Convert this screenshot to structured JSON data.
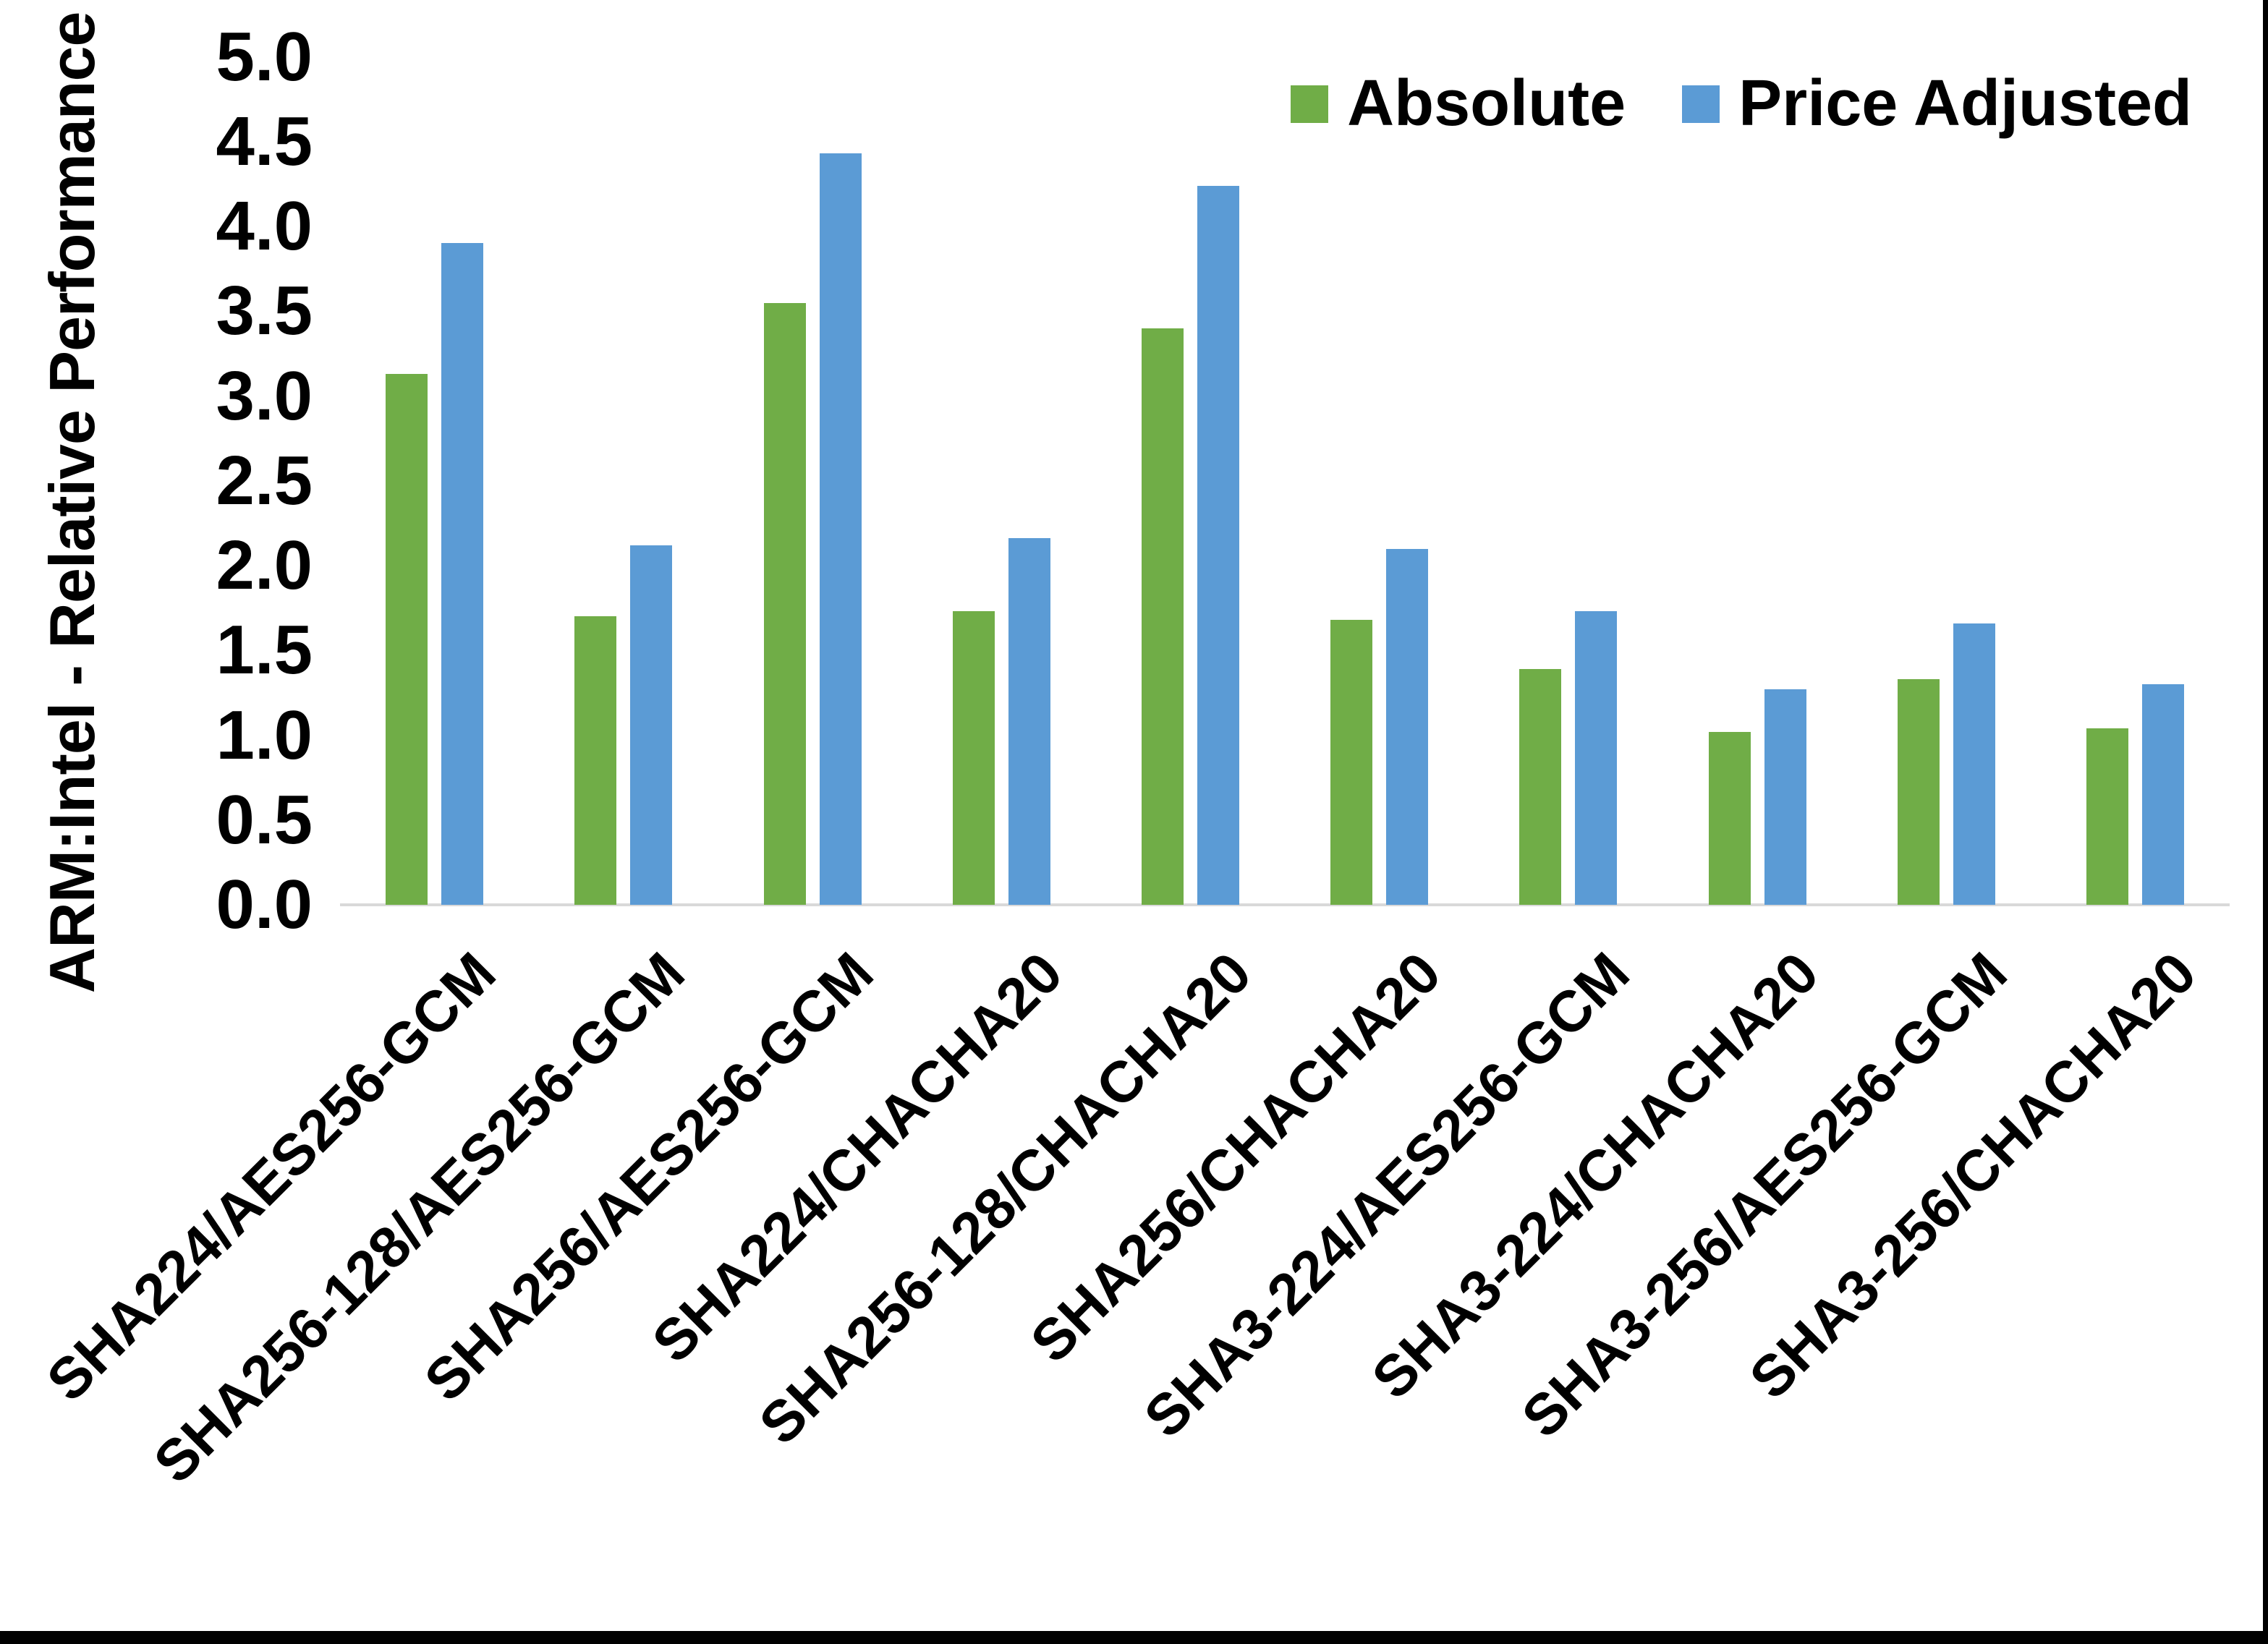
{
  "chart_data": {
    "type": "bar",
    "title": "",
    "ylabel": "ARM:Intel - Relative Performance",
    "xlabel": "",
    "ylim": [
      0.0,
      5.0
    ],
    "ytick_step": 0.5,
    "yticks": [
      "0.0",
      "0.5",
      "1.0",
      "1.5",
      "2.0",
      "2.5",
      "3.0",
      "3.5",
      "4.0",
      "4.5",
      "5.0"
    ],
    "grid": false,
    "legend_position": "top-right",
    "axis_line_color": "#D9D9D9",
    "categories": [
      "SHA224/AES256-GCM",
      "SHA256-128/AES256-GCM",
      "SHA256/AES256-GCM",
      "SHA224/CHACHA20",
      "SHA256-128/CHACHA20",
      "SHA256/CHACHA20",
      "SHA3-224/AES256-GCM",
      "SHA3-224/CHACHA20",
      "SHA3-256/AES256-GCM",
      "SHA3-256/CHACHA20"
    ],
    "series": [
      {
        "name": "Absolute",
        "color": "#70AD47",
        "values": [
          3.13,
          1.7,
          3.55,
          1.73,
          3.4,
          1.68,
          1.39,
          1.02,
          1.33,
          1.04
        ]
      },
      {
        "name": "Price Adjusted",
        "color": "#5B9BD5",
        "values": [
          3.9,
          2.12,
          4.43,
          2.16,
          4.24,
          2.1,
          1.73,
          1.27,
          1.66,
          1.3
        ]
      }
    ]
  }
}
